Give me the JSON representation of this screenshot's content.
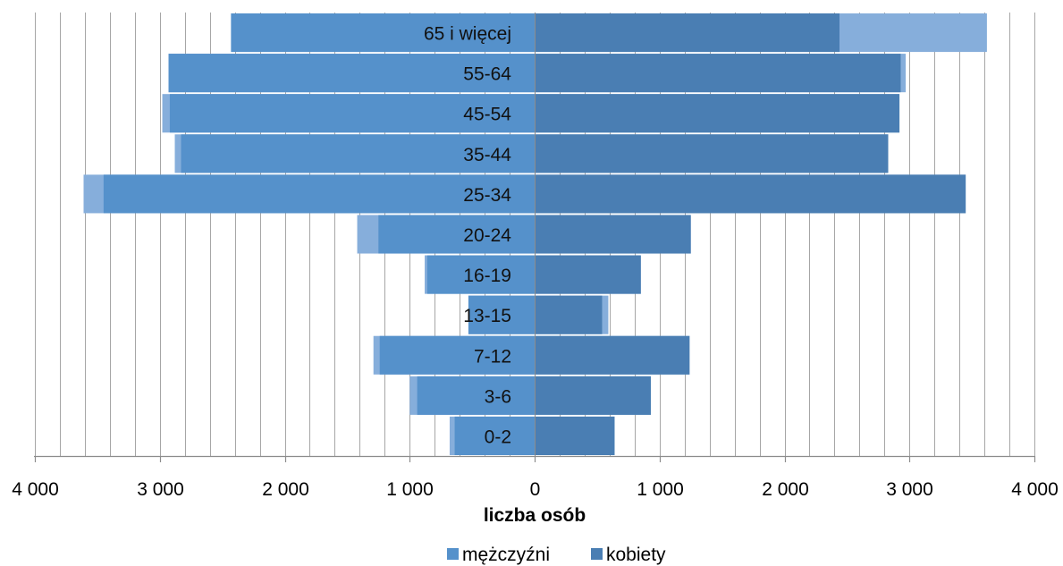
{
  "chart_data": {
    "type": "bar",
    "orientation": "horizontal",
    "subtype": "population-pyramid",
    "xlabel": "liczba osób",
    "xlim": [
      -4000,
      4000
    ],
    "xticks": [
      -4000,
      -3000,
      -2000,
      -1000,
      0,
      1000,
      2000,
      3000,
      4000
    ],
    "xtick_labels": [
      "4 000",
      "3 000",
      "2 000",
      "1 000",
      "0",
      "1 000",
      "2 000",
      "3 000",
      "4 000"
    ],
    "grid": true,
    "legend_position": "bottom",
    "categories": [
      "0-2",
      "3-6",
      "7-12",
      "13-15",
      "16-19",
      "20-24",
      "25-34",
      "35-44",
      "45-54",
      "55-64",
      "65 i więcej"
    ],
    "series": [
      {
        "name": "mężczyźni",
        "side": "left",
        "values": [
          680,
          1000,
          1290,
          530,
          880,
          1420,
          3610,
          2880,
          2980,
          2930,
          2430
        ],
        "overlay_values": [
          640,
          940,
          1240,
          530,
          860,
          1250,
          3450,
          2830,
          2920,
          2930,
          2430
        ]
      },
      {
        "name": "kobiety",
        "side": "right",
        "values": [
          640,
          930,
          1240,
          590,
          850,
          1250,
          3450,
          2830,
          2920,
          2970,
          3620
        ],
        "overlay_values": [
          640,
          930,
          1240,
          540,
          850,
          1250,
          3450,
          2830,
          2920,
          2930,
          2440
        ]
      }
    ],
    "colors": {
      "light": "#86aedb",
      "mezczyzni": "#5591cb",
      "kobiety": "#4a7eb3",
      "grid": "#a6a6a6",
      "axis": "#8c8c8c"
    }
  }
}
